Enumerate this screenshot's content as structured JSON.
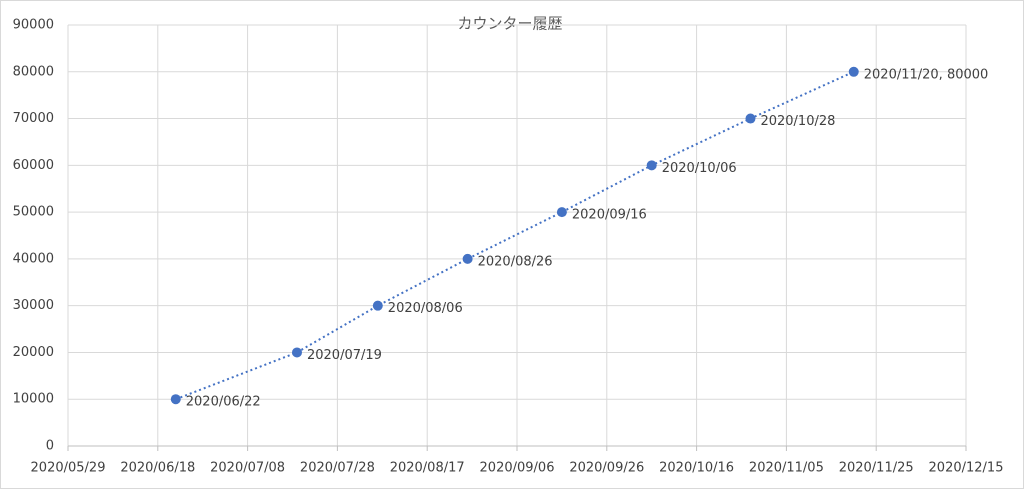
{
  "chart_data": {
    "type": "scatter",
    "title": "カウンター履歴",
    "x": [
      "2020/06/22",
      "2020/07/19",
      "2020/08/06",
      "2020/08/26",
      "2020/09/16",
      "2020/10/06",
      "2020/10/28",
      "2020/11/20"
    ],
    "series": [
      {
        "color": "#4472c4",
        "values": [
          10000,
          20000,
          30000,
          40000,
          50000,
          60000,
          70000,
          80000
        ],
        "point_labels": [
          "2020/06/22",
          "2020/07/19",
          "2020/08/06",
          "2020/08/26",
          "2020/09/16",
          "2020/10/06",
          "2020/10/28",
          "2020/11/20, 80000"
        ]
      }
    ],
    "xlim": [
      "2020/05/29",
      "2020/12/15"
    ],
    "xticks": [
      "2020/05/29",
      "2020/06/18",
      "2020/07/08",
      "2020/07/28",
      "2020/08/17",
      "2020/09/06",
      "2020/09/26",
      "2020/10/16",
      "2020/11/05",
      "2020/11/25",
      "2020/12/15"
    ],
    "ylim": [
      0,
      90000
    ],
    "yticks": [
      0,
      10000,
      20000,
      30000,
      40000,
      50000,
      60000,
      70000,
      80000,
      90000
    ],
    "grid": true,
    "line_style": "dotted"
  }
}
